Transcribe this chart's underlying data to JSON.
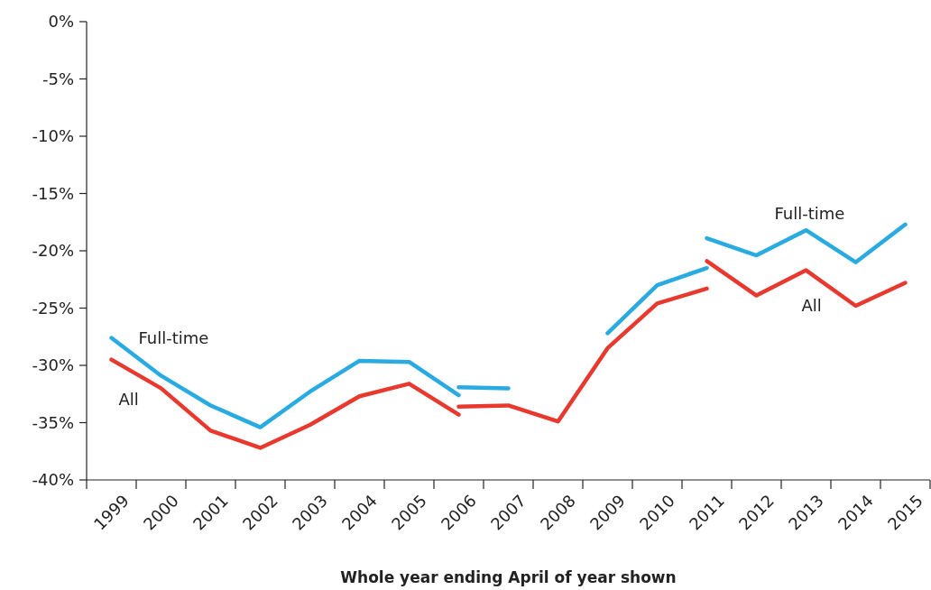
{
  "chart_data": {
    "type": "line",
    "xlabel": "Whole year ending April of year shown",
    "categories": [
      "1999",
      "2000",
      "2001",
      "2002",
      "2003",
      "2004",
      "2005",
      "2006",
      "2007",
      "2008",
      "2009",
      "2010",
      "2011",
      "2012",
      "2013",
      "2014",
      "2015"
    ],
    "series": [
      {
        "name": "Full-time",
        "color": "#29abe2",
        "values": [
          -27.6,
          -30.9,
          -33.5,
          -35.4,
          -32.3,
          -29.6,
          -29.7,
          -32.6,
          null,
          null,
          null,
          null,
          null,
          null,
          null,
          null,
          null
        ]
      },
      {
        "color": "#29abe2",
        "values": [
          null,
          null,
          null,
          null,
          null,
          null,
          null,
          -31.9,
          -32.0,
          null,
          null,
          null,
          null,
          null,
          null,
          null,
          null
        ]
      },
      {
        "color": "#29abe2",
        "values": [
          null,
          null,
          null,
          null,
          null,
          null,
          null,
          null,
          null,
          null,
          -27.2,
          -23.0,
          -21.5,
          null,
          null,
          null,
          null
        ]
      },
      {
        "name": "Full-time",
        "color": "#29abe2",
        "values": [
          null,
          null,
          null,
          null,
          null,
          null,
          null,
          null,
          null,
          null,
          null,
          null,
          -18.9,
          -20.4,
          -18.2,
          -21.0,
          -17.7
        ]
      },
      {
        "name": "All",
        "color": "#e8392f",
        "values": [
          -29.5,
          -32.0,
          -35.7,
          -37.2,
          -35.2,
          -32.7,
          -31.6,
          -34.3,
          null,
          null,
          null,
          null,
          null,
          null,
          null,
          null,
          null
        ]
      },
      {
        "color": "#e8392f",
        "values": [
          null,
          null,
          null,
          null,
          null,
          null,
          null,
          -33.6,
          -33.5,
          -34.9,
          -28.5,
          -24.6,
          -23.3,
          null,
          null,
          null,
          null
        ]
      },
      {
        "name": "All",
        "color": "#e8392f",
        "values": [
          null,
          null,
          null,
          null,
          null,
          null,
          null,
          null,
          null,
          null,
          null,
          null,
          -20.9,
          -23.9,
          -21.7,
          -24.8,
          -22.8
        ]
      }
    ],
    "ylim": [
      -40,
      0
    ],
    "yticks": [
      {
        "value": 0,
        "label": "0%"
      },
      {
        "value": -5,
        "label": "-5%"
      },
      {
        "value": -10,
        "label": "-10%"
      },
      {
        "value": -15,
        "label": "-15%"
      },
      {
        "value": -20,
        "label": "-20%"
      },
      {
        "value": -25,
        "label": "-25%"
      },
      {
        "value": -30,
        "label": "-30%"
      },
      {
        "value": -35,
        "label": "-35%"
      },
      {
        "value": -40,
        "label": "-40%"
      }
    ],
    "grid": false
  }
}
